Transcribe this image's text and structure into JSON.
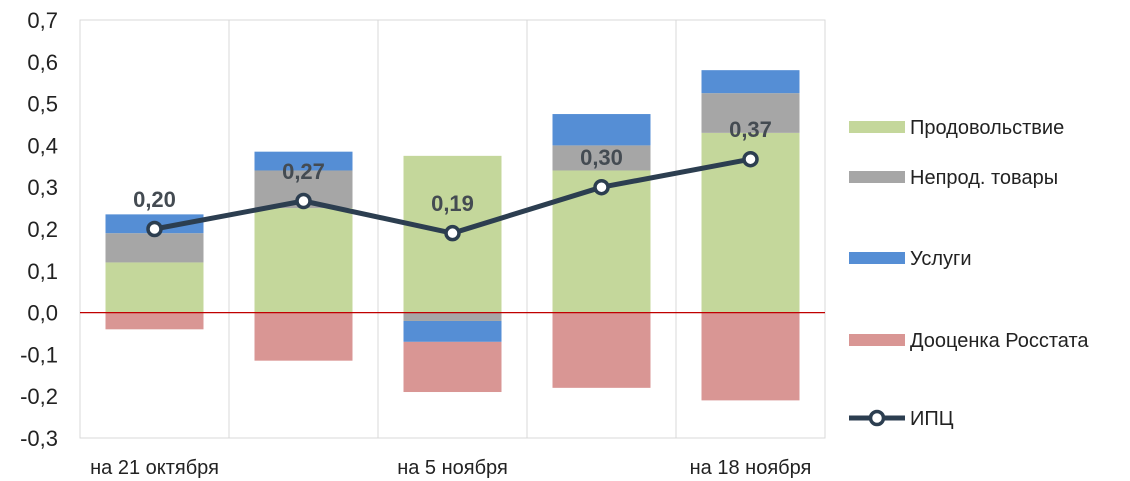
{
  "chart_data": {
    "type": "bar",
    "stacked": true,
    "categories": [
      "на 21 октября",
      "",
      "на 5 ноября",
      "",
      "на 18 ноября"
    ],
    "ylim": [
      -0.3,
      0.7
    ],
    "yticks": [
      "-0,3",
      "-0,2",
      "-0,1",
      "0,0",
      "0,1",
      "0,2",
      "0,3",
      "0,4",
      "0,5",
      "0,6",
      "0,7"
    ],
    "grid": "vertical",
    "legend_position": "right",
    "zero_line_color": "#c00000",
    "series": [
      {
        "name": "Продовольствие",
        "color": "#c4d79b",
        "values": [
          0.12,
          0.25,
          0.375,
          0.34,
          0.43
        ]
      },
      {
        "name": "Непрод. товары",
        "color": "#a6a6a6",
        "values": [
          0.07,
          0.09,
          -0.02,
          0.06,
          0.095
        ]
      },
      {
        "name": "Услуги",
        "color": "#558ed5",
        "values": [
          0.045,
          0.045,
          -0.05,
          0.075,
          0.055
        ]
      },
      {
        "name": "Дооценка Росстата",
        "color": "#d99694",
        "values": [
          -0.04,
          -0.115,
          -0.12,
          -0.18,
          -0.21
        ]
      }
    ],
    "line_series": {
      "name": "ИПЦ",
      "color": "#2c3e50",
      "values": [
        0.2,
        0.267,
        0.19,
        0.3,
        0.367
      ],
      "labels": [
        "0,20",
        "0,27",
        "0,19",
        "0,30",
        "0,37"
      ]
    }
  }
}
